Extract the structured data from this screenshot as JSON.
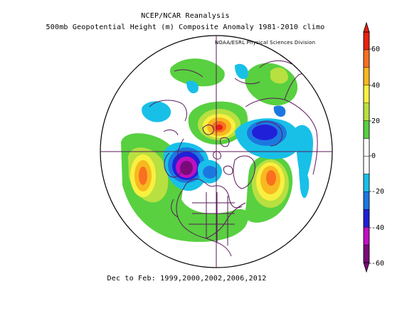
{
  "header": {
    "line1": "NCEP/NCAR Reanalysis",
    "line2": "500mb Geopotential Height (m) Composite Anomaly 1981-2010 climo"
  },
  "credit": "NOAA/ESRL Physical Sciences Division",
  "footer": "Dec to Feb: 1999,2000,2002,2006,2012",
  "colorbar": {
    "labels": [
      "60",
      "40",
      "20",
      "0",
      "-20",
      "-40",
      "-60"
    ],
    "colors": [
      "#7a0a7a",
      "#c010c0",
      "#2020d8",
      "#1c78e0",
      "#18c0e8",
      "#ffffff",
      "#ffffff",
      "#58d040",
      "#b8e040",
      "#f8f040",
      "#f8b820",
      "#f87020",
      "#e82010"
    ]
  },
  "map": {
    "projection": "north polar stereographic",
    "anomaly_centers": [
      {
        "region": "North Pacific",
        "sign": "positive"
      },
      {
        "region": "North Atlantic",
        "sign": "positive"
      },
      {
        "region": "Arctic / Siberia",
        "sign": "positive"
      },
      {
        "region": "Alaska / Yukon",
        "sign": "negative"
      },
      {
        "region": "Northern Eurasia",
        "sign": "negative"
      },
      {
        "region": "Greenland / Canadian Arctic",
        "sign": "negative"
      }
    ]
  }
}
